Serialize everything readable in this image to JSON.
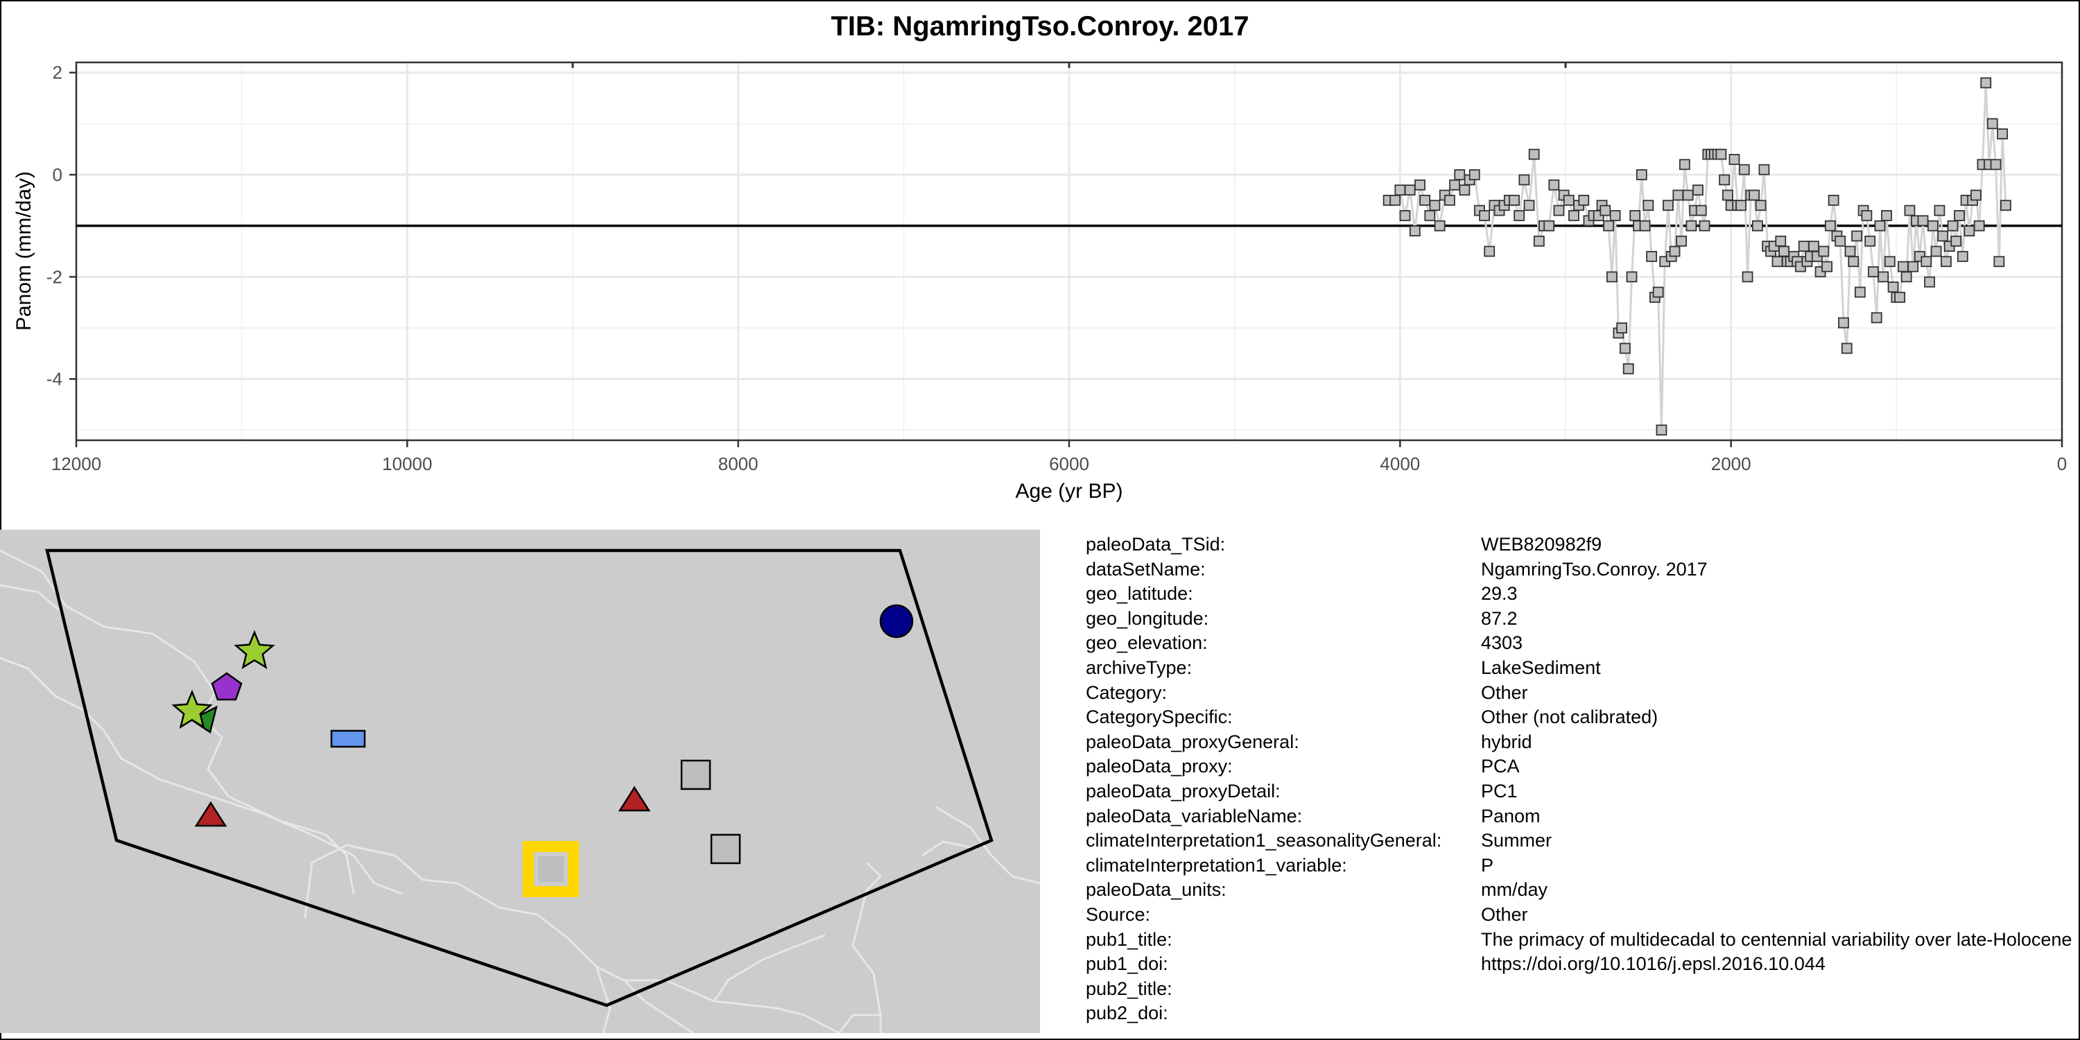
{
  "chart_data": {
    "type": "scatter",
    "title": "TIB: NgamringTso.Conroy. 2017",
    "xlabel": "Age (yr BP)",
    "ylabel": "Panom (mm/day)",
    "xlim": [
      12000,
      0
    ],
    "ylim": [
      -5.2,
      2.2
    ],
    "x_reversed": true,
    "x_ticks": [
      12000,
      10000,
      8000,
      6000,
      4000,
      2000,
      0
    ],
    "y_ticks": [
      2,
      0,
      -2,
      -4
    ],
    "reference_line_y": -1,
    "grid": true,
    "marker": "square",
    "marker_color": "#c0c0c0",
    "line_color": "#d3d3d3",
    "series": [
      {
        "points": [
          [
            4070,
            -0.5
          ],
          [
            4030,
            -0.5
          ],
          [
            4000,
            -0.3
          ],
          [
            3970,
            -0.8
          ],
          [
            3940,
            -0.3
          ],
          [
            3910,
            -1.1
          ],
          [
            3880,
            -0.2
          ],
          [
            3850,
            -0.5
          ],
          [
            3820,
            -0.8
          ],
          [
            3790,
            -0.6
          ],
          [
            3760,
            -1.0
          ],
          [
            3730,
            -0.4
          ],
          [
            3700,
            -0.5
          ],
          [
            3670,
            -0.2
          ],
          [
            3640,
            0.0
          ],
          [
            3610,
            -0.3
          ],
          [
            3580,
            -0.1
          ],
          [
            3550,
            0.0
          ],
          [
            3520,
            -0.7
          ],
          [
            3490,
            -0.8
          ],
          [
            3460,
            -1.5
          ],
          [
            3430,
            -0.6
          ],
          [
            3400,
            -0.7
          ],
          [
            3370,
            -0.6
          ],
          [
            3340,
            -0.5
          ],
          [
            3310,
            -0.5
          ],
          [
            3280,
            -0.8
          ],
          [
            3250,
            -0.1
          ],
          [
            3220,
            -0.6
          ],
          [
            3190,
            0.4
          ],
          [
            3160,
            -1.3
          ],
          [
            3130,
            -1.0
          ],
          [
            3100,
            -1.0
          ],
          [
            3070,
            -0.2
          ],
          [
            3040,
            -0.7
          ],
          [
            3010,
            -0.4
          ],
          [
            2980,
            -0.5
          ],
          [
            2950,
            -0.8
          ],
          [
            2920,
            -0.6
          ],
          [
            2890,
            -0.5
          ],
          [
            2860,
            -0.9
          ],
          [
            2830,
            -0.8
          ],
          [
            2800,
            -0.8
          ],
          [
            2780,
            -0.6
          ],
          [
            2760,
            -0.7
          ],
          [
            2740,
            -1.0
          ],
          [
            2720,
            -2.0
          ],
          [
            2700,
            -0.8
          ],
          [
            2680,
            -3.1
          ],
          [
            2660,
            -3.0
          ],
          [
            2640,
            -3.4
          ],
          [
            2620,
            -3.8
          ],
          [
            2600,
            -2.0
          ],
          [
            2580,
            -0.8
          ],
          [
            2560,
            -1.0
          ],
          [
            2540,
            0.0
          ],
          [
            2520,
            -1.0
          ],
          [
            2500,
            -0.6
          ],
          [
            2480,
            -1.6
          ],
          [
            2460,
            -2.4
          ],
          [
            2440,
            -2.3
          ],
          [
            2420,
            -5.0
          ],
          [
            2400,
            -1.7
          ],
          [
            2380,
            -0.6
          ],
          [
            2360,
            -1.6
          ],
          [
            2340,
            -1.5
          ],
          [
            2320,
            -0.4
          ],
          [
            2300,
            -1.3
          ],
          [
            2280,
            0.2
          ],
          [
            2260,
            -0.4
          ],
          [
            2240,
            -1.0
          ],
          [
            2220,
            -0.7
          ],
          [
            2200,
            -0.3
          ],
          [
            2180,
            -0.7
          ],
          [
            2160,
            -1.0
          ],
          [
            2140,
            0.4
          ],
          [
            2120,
            0.4
          ],
          [
            2100,
            0.4
          ],
          [
            2080,
            0.4
          ],
          [
            2060,
            0.4
          ],
          [
            2040,
            -0.1
          ],
          [
            2020,
            -0.4
          ],
          [
            2000,
            -0.6
          ],
          [
            1980,
            0.3
          ],
          [
            1960,
            -0.6
          ],
          [
            1940,
            -0.6
          ],
          [
            1920,
            0.1
          ],
          [
            1900,
            -2.0
          ],
          [
            1880,
            -0.4
          ],
          [
            1860,
            -0.4
          ],
          [
            1840,
            -1.0
          ],
          [
            1820,
            -0.6
          ],
          [
            1800,
            0.1
          ],
          [
            1780,
            -1.4
          ],
          [
            1760,
            -1.5
          ],
          [
            1740,
            -1.4
          ],
          [
            1720,
            -1.7
          ],
          [
            1700,
            -1.3
          ],
          [
            1680,
            -1.5
          ],
          [
            1660,
            -1.7
          ],
          [
            1640,
            -1.7
          ],
          [
            1620,
            -1.6
          ],
          [
            1600,
            -1.7
          ],
          [
            1580,
            -1.8
          ],
          [
            1560,
            -1.4
          ],
          [
            1540,
            -1.7
          ],
          [
            1520,
            -1.6
          ],
          [
            1500,
            -1.4
          ],
          [
            1480,
            -1.6
          ],
          [
            1460,
            -1.9
          ],
          [
            1440,
            -1.5
          ],
          [
            1420,
            -1.8
          ],
          [
            1400,
            -1.0
          ],
          [
            1380,
            -0.5
          ],
          [
            1360,
            -1.2
          ],
          [
            1340,
            -1.3
          ],
          [
            1320,
            -2.9
          ],
          [
            1300,
            -3.4
          ],
          [
            1280,
            -1.5
          ],
          [
            1260,
            -1.7
          ],
          [
            1240,
            -1.2
          ],
          [
            1220,
            -2.3
          ],
          [
            1200,
            -0.7
          ],
          [
            1180,
            -0.8
          ],
          [
            1160,
            -1.3
          ],
          [
            1140,
            -1.9
          ],
          [
            1120,
            -2.8
          ],
          [
            1100,
            -1.0
          ],
          [
            1080,
            -2.0
          ],
          [
            1060,
            -0.8
          ],
          [
            1040,
            -1.7
          ],
          [
            1020,
            -2.2
          ],
          [
            1000,
            -2.4
          ],
          [
            980,
            -2.4
          ],
          [
            960,
            -1.8
          ],
          [
            940,
            -2.0
          ],
          [
            920,
            -0.7
          ],
          [
            900,
            -1.8
          ],
          [
            880,
            -0.9
          ],
          [
            860,
            -1.6
          ],
          [
            840,
            -0.9
          ],
          [
            820,
            -1.7
          ],
          [
            800,
            -2.1
          ],
          [
            780,
            -1.0
          ],
          [
            760,
            -1.5
          ],
          [
            740,
            -0.7
          ],
          [
            720,
            -1.2
          ],
          [
            700,
            -1.7
          ],
          [
            680,
            -1.4
          ],
          [
            660,
            -1.0
          ],
          [
            640,
            -1.3
          ],
          [
            620,
            -0.8
          ],
          [
            600,
            -1.6
          ],
          [
            580,
            -0.5
          ],
          [
            560,
            -1.1
          ],
          [
            540,
            -0.5
          ],
          [
            520,
            -0.4
          ],
          [
            500,
            -1.0
          ],
          [
            480,
            0.2
          ],
          [
            460,
            1.8
          ],
          [
            440,
            0.2
          ],
          [
            420,
            1.0
          ],
          [
            400,
            0.2
          ],
          [
            380,
            -1.7
          ],
          [
            360,
            0.8
          ],
          [
            340,
            -0.6
          ]
        ]
      }
    ]
  },
  "map": {
    "background_color": "#cccccc",
    "border_line_color": "#e6e6e6",
    "polygon_color": "#000000",
    "markers": [
      {
        "shape": "circle",
        "color": "#00008b"
      },
      {
        "shape": "star",
        "color": "#9acd32"
      },
      {
        "shape": "pentagon",
        "color": "#9932cc"
      },
      {
        "shape": "star",
        "color": "#9acd32"
      },
      {
        "shape": "triangle-left",
        "color": "#228b22"
      },
      {
        "shape": "rectangle",
        "color": "#6495ed"
      },
      {
        "shape": "square",
        "color": "#bebebe"
      },
      {
        "shape": "triangle",
        "color": "#b22222"
      },
      {
        "shape": "triangle",
        "color": "#b22222"
      },
      {
        "shape": "square",
        "color": "#bebebe"
      },
      {
        "shape": "square",
        "color": "#bebebe",
        "highlight": "#ffd700"
      }
    ]
  },
  "metadata": [
    {
      "key": "paleoData_TSid:",
      "value": "WEB820982f9"
    },
    {
      "key": "dataSetName:",
      "value": "NgamringTso.Conroy. 2017"
    },
    {
      "key": "geo_latitude:",
      "value": "29.3"
    },
    {
      "key": "geo_longitude:",
      "value": "87.2"
    },
    {
      "key": "geo_elevation:",
      "value": "4303"
    },
    {
      "key": "archiveType:",
      "value": "LakeSediment"
    },
    {
      "key": "Category:",
      "value": "Other"
    },
    {
      "key": "CategorySpecific:",
      "value": "Other (not calibrated)"
    },
    {
      "key": "paleoData_proxyGeneral:",
      "value": "hybrid"
    },
    {
      "key": "paleoData_proxy:",
      "value": "PCA"
    },
    {
      "key": "paleoData_proxyDetail:",
      "value": "PC1"
    },
    {
      "key": "paleoData_variableName:",
      "value": "Panom"
    },
    {
      "key": "climateInterpretation1_seasonalityGeneral:",
      "value": "Summer"
    },
    {
      "key": "climateInterpretation1_variable:",
      "value": "P"
    },
    {
      "key": "paleoData_units:",
      "value": "mm/day"
    },
    {
      "key": "Source:",
      "value": "Other"
    },
    {
      "key": "pub1_title:",
      "value": "The primacy of multidecadal to centennial variability over late-Holocene forced change of the Asian Monsoon on the southern Tibetan Plateau"
    },
    {
      "key": "pub1_doi:",
      "value": "https://doi.org/10.1016/j.epsl.2016.10.044"
    },
    {
      "key": "pub2_title:",
      "value": ""
    },
    {
      "key": "pub2_doi:",
      "value": ""
    }
  ]
}
